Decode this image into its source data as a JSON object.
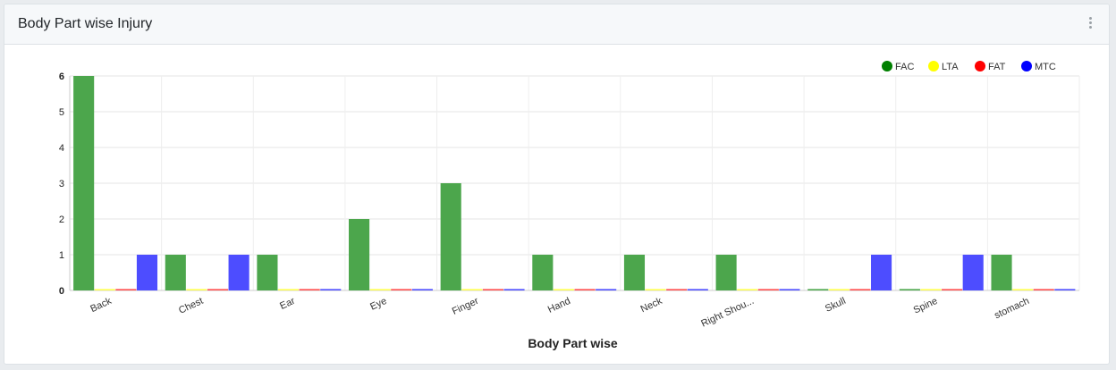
{
  "card": {
    "title": "Body Part wise Injury"
  },
  "chart_data": {
    "type": "bar",
    "title": "",
    "xlabel": "Body Part wise",
    "ylabel": "",
    "ylim": [
      0,
      6
    ],
    "yticks": [
      0,
      1,
      2,
      3,
      4,
      5,
      6
    ],
    "categories": [
      "Back",
      "Chest",
      "Ear",
      "Eye",
      "Finger",
      "Hand",
      "Neck",
      "Right Shou...",
      "Skull",
      "Spine",
      "stomach"
    ],
    "series": [
      {
        "name": "FAC",
        "color": "#4ca64c",
        "legend_color": "#008000",
        "values": [
          6,
          1,
          1,
          2,
          3,
          1,
          1,
          1,
          0,
          0,
          1
        ]
      },
      {
        "name": "LTA",
        "color": "#ffff4d",
        "legend_color": "#ffff00",
        "values": [
          0,
          0,
          0,
          0,
          0,
          0,
          0,
          0,
          0,
          0,
          0
        ]
      },
      {
        "name": "FAT",
        "color": "#ff4d4d",
        "legend_color": "#ff0000",
        "values": [
          0,
          0,
          0,
          0,
          0,
          0,
          0,
          0,
          0,
          0,
          0
        ]
      },
      {
        "name": "MTC",
        "color": "#4d4dff",
        "legend_color": "#0000ff",
        "values": [
          1,
          1,
          0,
          0,
          0,
          0,
          0,
          0,
          1,
          1,
          0
        ]
      }
    ],
    "grid": true,
    "legend_position": "top-right"
  }
}
